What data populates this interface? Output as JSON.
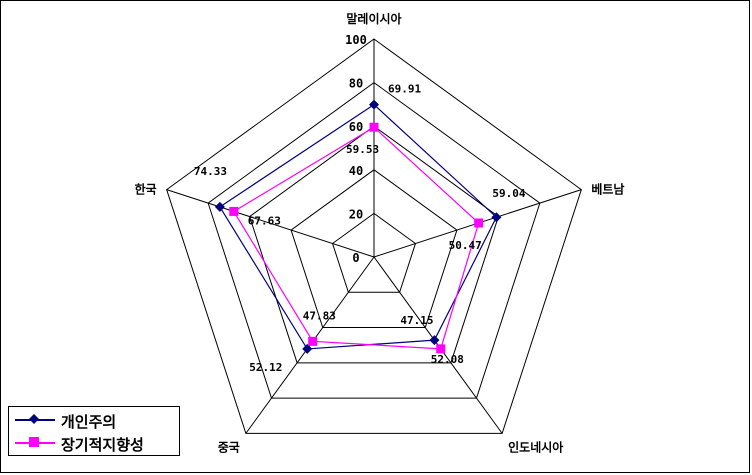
{
  "chart_data": {
    "type": "radar",
    "categories": [
      "말레이시아",
      "베트남",
      "인도네시아",
      "중국",
      "한국"
    ],
    "rlim": [
      0,
      100
    ],
    "ticks": [
      "0",
      "20",
      "40",
      "60",
      "80",
      "100"
    ],
    "series": [
      {
        "name": "개인주의",
        "color": "#000080",
        "marker": "diamond",
        "values": [
          69.91,
          59.04,
          47.15,
          52.12,
          74.33
        ],
        "labels": [
          "69.91",
          "59.04",
          "47.15",
          "52.12",
          "74.33"
        ]
      },
      {
        "name": "장기적지향성",
        "color": "#FF00FF",
        "marker": "square",
        "values": [
          59.53,
          50.47,
          52.08,
          47.83,
          67.63
        ],
        "labels": [
          "59.53",
          "50.47",
          "52.08",
          "47.83",
          "67.63"
        ]
      }
    ],
    "grid": true,
    "legend": "bottom-left"
  }
}
